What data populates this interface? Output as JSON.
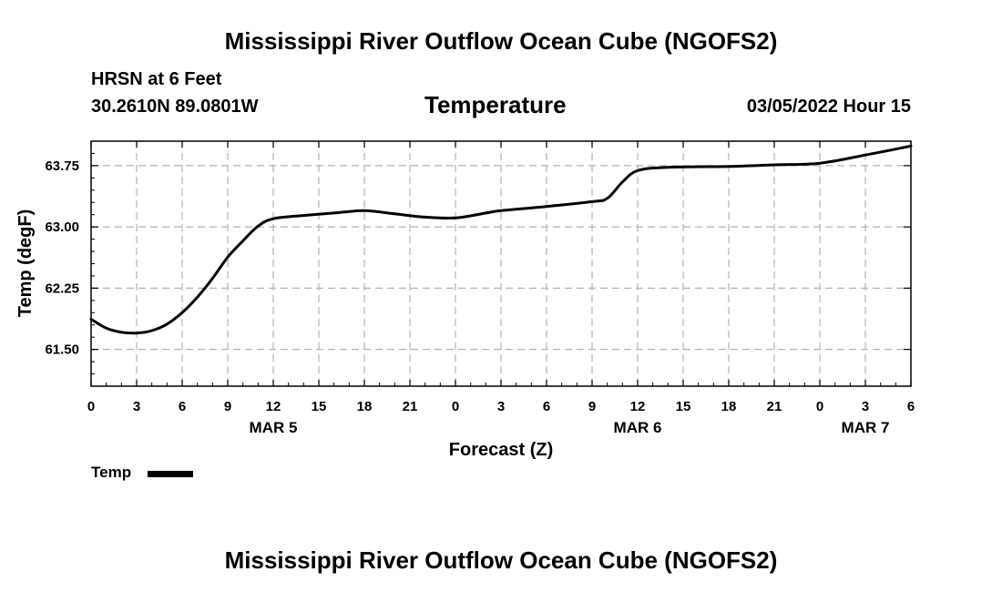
{
  "header": {
    "title": "Mississippi River Outflow Ocean Cube (NGOFS2)",
    "station": "HRSN at 6 Feet",
    "location": "30.2610N  89.0801W",
    "datetime": "03/05/2022 Hour 15"
  },
  "footer": {
    "title": "Mississippi River Outflow Ocean Cube (NGOFS2)"
  },
  "chart_data": {
    "type": "line",
    "title": "Temperature",
    "xlabel": "Forecast (Z)",
    "ylabel": "Temp (degF)",
    "grid": true,
    "xlim": [
      0,
      54
    ],
    "ylim": [
      61.05,
      64.05
    ],
    "x_ticks": [
      0,
      3,
      6,
      9,
      12,
      15,
      18,
      21,
      24,
      27,
      30,
      33,
      36,
      39,
      42,
      45,
      48,
      51,
      54
    ],
    "x_tick_labels": [
      "0",
      "3",
      "6",
      "9",
      "12",
      "15",
      "18",
      "21",
      "0",
      "3",
      "6",
      "9",
      "12",
      "15",
      "18",
      "21",
      "0",
      "3",
      "6"
    ],
    "y_ticks": [
      61.5,
      62.25,
      63.0,
      63.75
    ],
    "y_tick_labels": [
      "61.50",
      "62.25",
      "63.00",
      "63.75"
    ],
    "day_labels": [
      {
        "x": 12,
        "label": "MAR 5"
      },
      {
        "x": 36,
        "label": "MAR 6"
      },
      {
        "x": 51,
        "label": "MAR 7"
      }
    ],
    "series": [
      {
        "name": "Temp",
        "color": "#000000",
        "x": [
          0,
          1,
          2,
          3,
          4,
          5,
          6,
          7,
          8,
          9,
          10,
          11,
          12,
          14,
          16,
          18,
          20,
          22,
          24,
          26,
          27,
          30,
          33,
          34,
          35,
          36,
          38,
          42,
          45,
          48,
          51,
          54
        ],
        "values": [
          61.87,
          61.76,
          61.71,
          61.7,
          61.73,
          61.81,
          61.95,
          62.14,
          62.37,
          62.63,
          62.83,
          63.01,
          63.1,
          63.14,
          63.17,
          63.2,
          63.16,
          63.12,
          63.11,
          63.17,
          63.2,
          63.25,
          63.31,
          63.35,
          63.55,
          63.69,
          63.73,
          63.74,
          63.76,
          63.78,
          63.88,
          63.99
        ]
      }
    ]
  },
  "legend": {
    "items": [
      {
        "label": "Temp",
        "color": "#000000"
      }
    ]
  }
}
